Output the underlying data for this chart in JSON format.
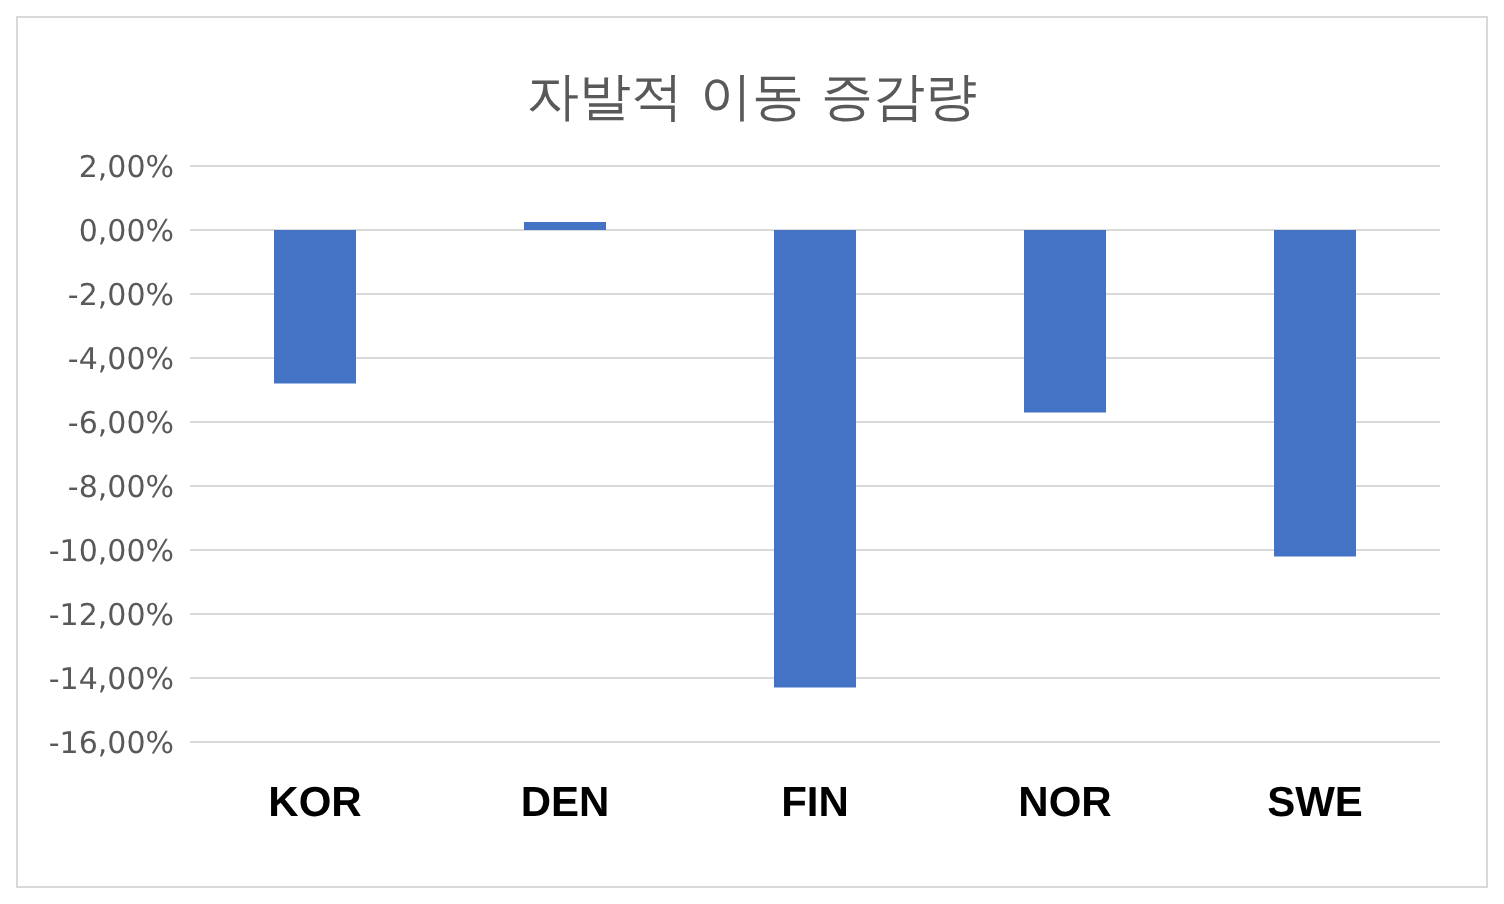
{
  "chart_data": {
    "type": "bar",
    "title": "자발적 이동 증감량",
    "categories": [
      "KOR",
      "DEN",
      "FIN",
      "NOR",
      "SWE"
    ],
    "values": [
      -4.8,
      0.25,
      -14.3,
      -5.7,
      -10.2
    ],
    "color": "#4472c4",
    "ylim": [
      -16,
      2
    ],
    "yticks": [
      {
        "value": 2,
        "label": "2,00%"
      },
      {
        "value": 0,
        "label": "0,00%"
      },
      {
        "value": -2,
        "label": "-2,00%"
      },
      {
        "value": -4,
        "label": "-4,00%"
      },
      {
        "value": -6,
        "label": "-6,00%"
      },
      {
        "value": -8,
        "label": "-8,00%"
      },
      {
        "value": -10,
        "label": "-10,00%"
      },
      {
        "value": -12,
        "label": "-12,00%"
      },
      {
        "value": -14,
        "label": "-14,00%"
      },
      {
        "value": -16,
        "label": "-16,00%"
      }
    ],
    "grid": "y",
    "legend": false
  }
}
